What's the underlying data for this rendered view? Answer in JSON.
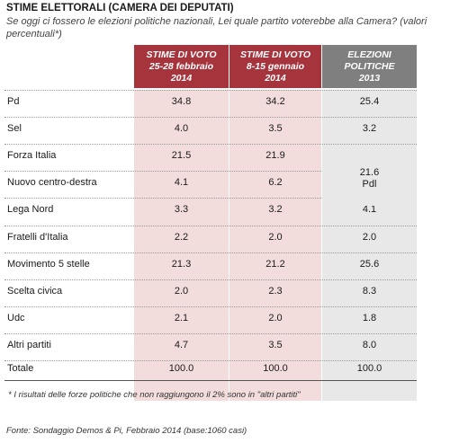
{
  "title": "STIME ELETTORALI (CAMERA DEI DEPUTATI)",
  "subtitle": "Se oggi ci fossero le elezioni politiche nazionali, Lei quale partito voterebbe alla Camera? (valori percentuali*)",
  "columns": [
    "STIME DI VOTO\n25-28 febbraio\n2014",
    "STIME DI VOTO\n8-15 gennaio\n2014",
    "ELEZIONI\nPOLITICHE\n2013"
  ],
  "rows": [
    {
      "label": "Pd",
      "v1": "34.8",
      "v2": "34.2",
      "v3": "25.4"
    },
    {
      "label": "Sel",
      "v1": "4.0",
      "v2": "3.5",
      "v3": "3.2"
    },
    {
      "label": "Forza Italia",
      "v1": "21.5",
      "v2": "21.9",
      "v3": ""
    },
    {
      "label": "Nuovo centro-destra",
      "v1": "4.1",
      "v2": "6.2",
      "v3": ""
    },
    {
      "label": "Lega Nord",
      "v1": "3.3",
      "v2": "3.2",
      "v3": "4.1"
    },
    {
      "label": "Fratelli d'Italia",
      "v1": "2.2",
      "v2": "2.0",
      "v3": "2.0"
    },
    {
      "label": "Movimento 5 stelle",
      "v1": "21.3",
      "v2": "21.2",
      "v3": "25.6"
    },
    {
      "label": "Scelta civica",
      "v1": "2.0",
      "v2": "2.3",
      "v3": "8.3"
    },
    {
      "label": "Udc",
      "v1": "2.1",
      "v2": "2.0",
      "v3": "1.8"
    },
    {
      "label": "Altri partiti",
      "v1": "4.7",
      "v2": "3.5",
      "v3": "8.0"
    }
  ],
  "merged_cell": {
    "value": "21.6",
    "label": "Pdl"
  },
  "total": {
    "label": "Totale",
    "v1": "100.0",
    "v2": "100.0",
    "v3": "100.0"
  },
  "note": "* I risultati delle forze politiche che non raggiungono il 2% sono in \"altri partiti\"",
  "source": "Fonte: Sondaggio Demos & Pi, Febbraio 2014 (base:1060 casi)",
  "colors": {
    "estimate_header": "#a5343c",
    "estimate_fill": "#f2dcdc",
    "election_header": "#7f7f7f",
    "election_fill": "#e8e8e8"
  }
}
